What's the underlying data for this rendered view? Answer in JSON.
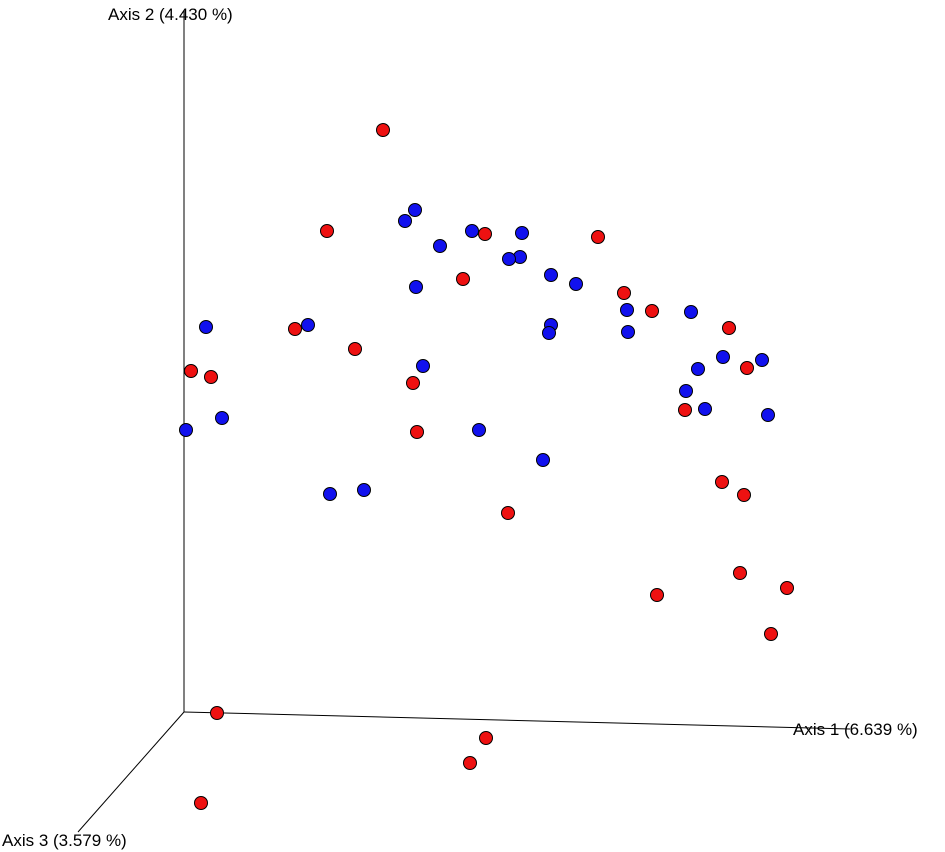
{
  "chart_data": {
    "type": "scatter",
    "projection": "3d",
    "title": "",
    "axis_labels": {
      "axis1": "Axis 1 (6.639 %)",
      "axis2": "Axis 2 (4.430 %)",
      "axis3": "Axis 3 (3.579 %)"
    },
    "grid": false,
    "legend": "none",
    "colors": {
      "group_a": "#ee1111",
      "group_b": "#1111ee"
    },
    "series": [
      {
        "color_key": "group_a",
        "points": [
          [
            383,
            130
          ],
          [
            327,
            231
          ],
          [
            485,
            234
          ],
          [
            598,
            237
          ],
          [
            463,
            279
          ],
          [
            624,
            293
          ],
          [
            652,
            311
          ],
          [
            295,
            329
          ],
          [
            729,
            328
          ],
          [
            355,
            349
          ],
          [
            191,
            371
          ],
          [
            211,
            377
          ],
          [
            747,
            368
          ],
          [
            413,
            383
          ],
          [
            685,
            410
          ],
          [
            417,
            432
          ],
          [
            722,
            482
          ],
          [
            744,
            495
          ],
          [
            508,
            513
          ],
          [
            740,
            573
          ],
          [
            787,
            588
          ],
          [
            657,
            595
          ],
          [
            771,
            634
          ],
          [
            217,
            713
          ],
          [
            486,
            738
          ],
          [
            470,
            763
          ],
          [
            201,
            803
          ]
        ]
      },
      {
        "color_key": "group_b",
        "points": [
          [
            415,
            210
          ],
          [
            405,
            221
          ],
          [
            440,
            246
          ],
          [
            472,
            231
          ],
          [
            522,
            233
          ],
          [
            520,
            257
          ],
          [
            509,
            259
          ],
          [
            551,
            275
          ],
          [
            576,
            284
          ],
          [
            416,
            287
          ],
          [
            627,
            310
          ],
          [
            691,
            312
          ],
          [
            551,
            325
          ],
          [
            549,
            333
          ],
          [
            628,
            332
          ],
          [
            206,
            327
          ],
          [
            308,
            325
          ],
          [
            423,
            366
          ],
          [
            723,
            357
          ],
          [
            762,
            360
          ],
          [
            698,
            369
          ],
          [
            686,
            391
          ],
          [
            705,
            409
          ],
          [
            768,
            415
          ],
          [
            222,
            418
          ],
          [
            186,
            430
          ],
          [
            479,
            430
          ],
          [
            543,
            460
          ],
          [
            330,
            494
          ],
          [
            364,
            490
          ]
        ]
      }
    ]
  }
}
